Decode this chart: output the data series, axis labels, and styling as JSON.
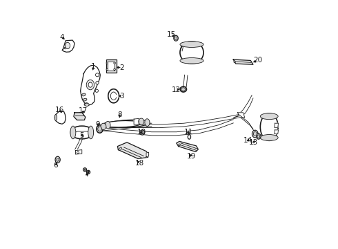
{
  "background_color": "#ffffff",
  "line_color": "#1a1a1a",
  "fig_width": 4.9,
  "fig_height": 3.6,
  "dpi": 100,
  "label_fontsize": 7.5,
  "arrows": {
    "1": {
      "lp": [
        0.195,
        0.735
      ],
      "tp": [
        0.19,
        0.71
      ]
    },
    "2": {
      "lp": [
        0.31,
        0.73
      ],
      "tp": [
        0.278,
        0.73
      ]
    },
    "3": {
      "lp": [
        0.31,
        0.615
      ],
      "tp": [
        0.285,
        0.615
      ]
    },
    "4": {
      "lp": [
        0.068,
        0.852
      ],
      "tp": [
        0.085,
        0.838
      ]
    },
    "5": {
      "lp": [
        0.148,
        0.455
      ],
      "tp": [
        0.155,
        0.47
      ]
    },
    "6": {
      "lp": [
        0.042,
        0.335
      ],
      "tp": [
        0.05,
        0.355
      ]
    },
    "7": {
      "lp": [
        0.168,
        0.298
      ],
      "tp": [
        0.168,
        0.315
      ]
    },
    "8": {
      "lp": [
        0.3,
        0.538
      ],
      "tp": [
        0.3,
        0.52
      ]
    },
    "9": {
      "lp": [
        0.212,
        0.5
      ],
      "tp": [
        0.218,
        0.485
      ]
    },
    "10": {
      "lp": [
        0.39,
        0.468
      ],
      "tp": [
        0.372,
        0.468
      ]
    },
    "11": {
      "lp": [
        0.578,
        0.468
      ],
      "tp": [
        0.582,
        0.452
      ]
    },
    "12": {
      "lp": [
        0.53,
        0.64
      ],
      "tp": [
        0.552,
        0.645
      ]
    },
    "13": {
      "lp": [
        0.842,
        0.428
      ],
      "tp": [
        0.848,
        0.445
      ]
    },
    "14": {
      "lp": [
        0.82,
        0.435
      ],
      "tp": [
        0.822,
        0.452
      ]
    },
    "15": {
      "lp": [
        0.51,
        0.862
      ],
      "tp": [
        0.53,
        0.848
      ]
    },
    "16": {
      "lp": [
        0.058,
        0.558
      ],
      "tp": [
        0.072,
        0.54
      ]
    },
    "17": {
      "lp": [
        0.152,
        0.555
      ],
      "tp": [
        0.155,
        0.535
      ]
    },
    "18": {
      "lp": [
        0.382,
        0.345
      ],
      "tp": [
        0.362,
        0.358
      ]
    },
    "19": {
      "lp": [
        0.59,
        0.372
      ],
      "tp": [
        0.578,
        0.388
      ]
    },
    "20": {
      "lp": [
        0.858,
        0.758
      ],
      "tp": [
        0.832,
        0.748
      ]
    }
  }
}
